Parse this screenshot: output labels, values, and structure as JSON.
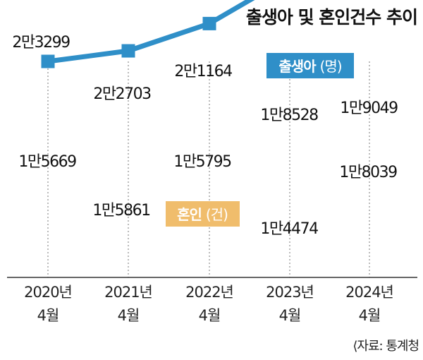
{
  "chart_data": {
    "type": "line",
    "title": "출생아 및 혼인건수 추이",
    "categories": [
      {
        "year": "2020년",
        "month": "4월"
      },
      {
        "year": "2021년",
        "month": "4월"
      },
      {
        "year": "2022년",
        "month": "4월"
      },
      {
        "year": "2023년",
        "month": "4월"
      },
      {
        "year": "2024년",
        "month": "4월"
      }
    ],
    "series": [
      {
        "name": "출생아",
        "unit": "(명)",
        "color": "#2f8fc8",
        "values": [
          23299,
          22703,
          21164,
          18528,
          19049
        ],
        "labels": [
          "2만3299",
          "2만2703",
          "2만1164",
          "1만8528",
          "1만9049"
        ]
      },
      {
        "name": "혼인",
        "unit": "(건)",
        "color": "#f0bd6c",
        "values": [
          15669,
          15861,
          15795,
          14474,
          18039
        ],
        "labels": [
          "1만5669",
          "1만5861",
          "1만5795",
          "1만4474",
          "1만8039"
        ]
      }
    ],
    "source": "⟨자료: 통계청"
  }
}
